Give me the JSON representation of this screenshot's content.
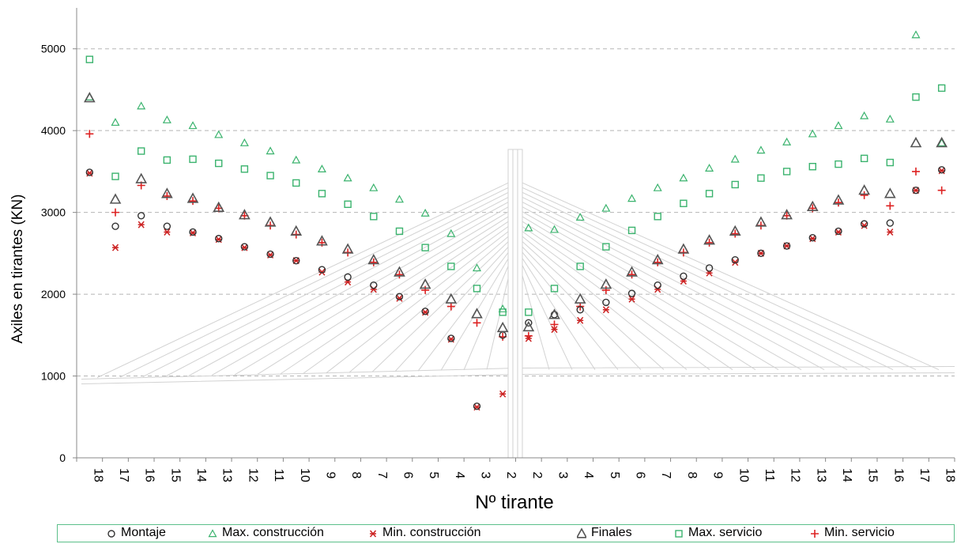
{
  "chart_data": {
    "type": "scatter",
    "xlabel": "Nº tirante",
    "ylabel": "Axiles en tirantes (KN)",
    "categories": [
      "18",
      "17",
      "16",
      "15",
      "14",
      "13",
      "12",
      "11",
      "10",
      "9",
      "8",
      "7",
      "6",
      "5",
      "4",
      "3",
      "2",
      "2",
      "3",
      "4",
      "5",
      "6",
      "7",
      "8",
      "9",
      "10",
      "11",
      "12",
      "13",
      "14",
      "15",
      "16",
      "17",
      "18"
    ],
    "ylim": [
      0,
      5500
    ],
    "yticks": [
      "0",
      "1000",
      "2000",
      "3000",
      "4000",
      "5000"
    ],
    "grid": "horizontal dashed",
    "legend_position": "bottom",
    "series": [
      {
        "name": "Montaje",
        "color": "#333333",
        "marker": "circle",
        "values": [
          3490,
          2830,
          2960,
          2830,
          2760,
          2680,
          2580,
          2490,
          2410,
          2300,
          2210,
          2110,
          1970,
          1790,
          1460,
          630,
          1500,
          1650,
          1750,
          1810,
          1900,
          2010,
          2110,
          2220,
          2320,
          2420,
          2500,
          2590,
          2690,
          2770,
          2860,
          2870,
          3270,
          3520
        ]
      },
      {
        "name": "Max. construcción",
        "color": "#3bb36e",
        "marker": "triangle",
        "values": [
          4410,
          4100,
          4300,
          4130,
          4060,
          3950,
          3850,
          3750,
          3640,
          3530,
          3420,
          3300,
          3160,
          2990,
          2740,
          2320,
          1820,
          2810,
          2790,
          2940,
          3050,
          3170,
          3300,
          3420,
          3540,
          3650,
          3760,
          3860,
          3960,
          4060,
          4180,
          4140,
          5170,
          3850
        ]
      },
      {
        "name": "Min. construcción",
        "color": "#cc2222",
        "marker": "x",
        "values": [
          3480,
          2570,
          2850,
          2760,
          2750,
          2670,
          2570,
          2480,
          2410,
          2270,
          2150,
          2060,
          1950,
          1780,
          1450,
          620,
          780,
          1460,
          1570,
          1680,
          1810,
          1940,
          2060,
          2160,
          2260,
          2390,
          2500,
          2590,
          2680,
          2760,
          2840,
          2760,
          3270,
          3510
        ]
      },
      {
        "name": "Finales",
        "color": "#555555",
        "marker": "triangle",
        "values": [
          4400,
          3160,
          3410,
          3230,
          3170,
          3060,
          2970,
          2880,
          2770,
          2650,
          2550,
          2420,
          2270,
          2120,
          1940,
          1760,
          1590,
          1600,
          1750,
          1940,
          2120,
          2270,
          2420,
          2550,
          2660,
          2770,
          2880,
          2970,
          3070,
          3150,
          3270,
          3230,
          3850,
          3850
        ]
      },
      {
        "name": "Max. servicio",
        "color": "#3bb36e",
        "marker": "square",
        "values": [
          4870,
          3440,
          3750,
          3640,
          3650,
          3600,
          3530,
          3450,
          3360,
          3230,
          3100,
          2950,
          2770,
          2570,
          2340,
          2070,
          1780,
          1780,
          2070,
          2340,
          2580,
          2780,
          2950,
          3110,
          3230,
          3340,
          3420,
          3500,
          3560,
          3590,
          3660,
          3610,
          4410,
          4520
        ]
      },
      {
        "name": "Min. servicio",
        "color": "#dd2222",
        "marker": "plus",
        "values": [
          3960,
          3000,
          3330,
          3200,
          3140,
          3050,
          2960,
          2840,
          2730,
          2630,
          2510,
          2390,
          2240,
          2050,
          1850,
          1650,
          1480,
          1490,
          1630,
          1850,
          2050,
          2240,
          2390,
          2510,
          2630,
          2740,
          2840,
          2960,
          3050,
          3120,
          3210,
          3080,
          3500,
          3270
        ]
      }
    ]
  }
}
